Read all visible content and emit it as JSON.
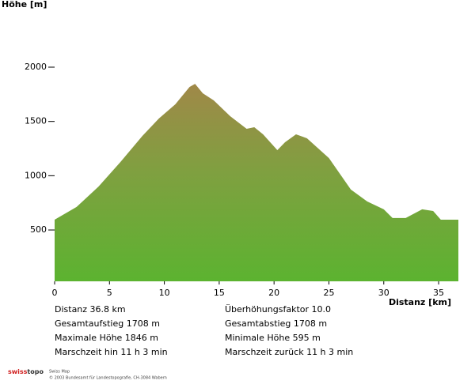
{
  "chart_data": {
    "type": "area",
    "y_label": "Höhe [m]",
    "x_label": "Distanz [km]",
    "x": [
      0,
      2,
      4,
      6,
      8,
      9.5,
      11,
      12.3,
      12.8,
      13.5,
      14.5,
      16,
      17.5,
      18.2,
      19,
      20.3,
      21,
      22,
      23,
      25,
      27,
      28.5,
      30,
      30.8,
      32,
      33.5,
      34.5,
      35.2,
      36.8
    ],
    "series": [
      {
        "color": "#6aa33a",
        "values": [
          595,
          712,
          900,
          1126,
          1367,
          1527,
          1658,
          1818,
          1846,
          1760,
          1694,
          1549,
          1432,
          1447,
          1381,
          1236,
          1308,
          1381,
          1345,
          1163,
          872,
          762,
          690,
          610,
          610,
          690,
          675,
          595,
          595
        ]
      }
    ],
    "xlim": [
      0,
      36.8
    ],
    "ylim": [
      27,
      2000
    ],
    "xticks": [
      0,
      5,
      10,
      15,
      20,
      25,
      30,
      35
    ],
    "yticks": [
      500,
      1000,
      1500,
      2000
    ]
  },
  "stats": {
    "left": [
      "Distanz  36.8 km",
      "Gesamtaufstieg  1708 m",
      "Maximale Höhe  1846 m",
      "Marschzeit hin  11 h 3 min"
    ],
    "right": [
      "Überhöhungsfaktor 10.0",
      "Gesamtabstieg  1708 m",
      "Minimale Höhe  595 m",
      "Marschzeit zurück  11 h 3 min"
    ]
  },
  "footer": {
    "logo_a": "swiss",
    "logo_b": "topo",
    "line1": "Swiss Map",
    "line2": "© 2003 Bundesamt für Landestopografie, CH-3084 Wabern"
  }
}
